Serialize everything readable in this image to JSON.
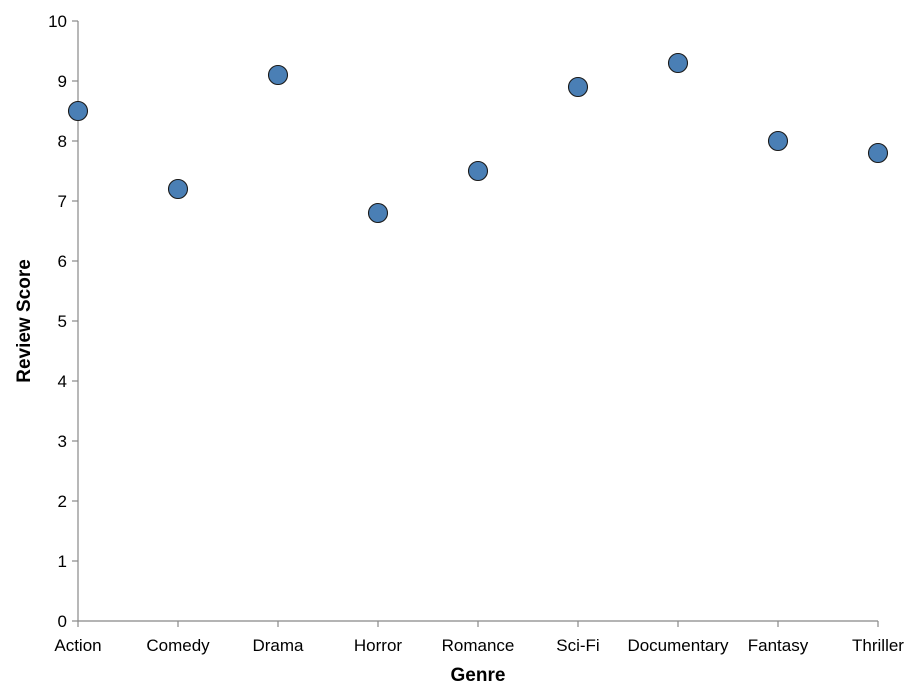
{
  "chart_data": {
    "type": "scatter",
    "xlabel": "Genre",
    "ylabel": "Review Score",
    "categories": [
      "Action",
      "Comedy",
      "Drama",
      "Horror",
      "Romance",
      "Sci-Fi",
      "Documentary",
      "Fantasy",
      "Thriller"
    ],
    "values": [
      8.5,
      7.2,
      9.1,
      6.8,
      7.5,
      8.9,
      9.3,
      8.0,
      7.8
    ],
    "ylim": [
      0,
      10
    ],
    "yticks": [
      "0",
      "1",
      "2",
      "3",
      "4",
      "5",
      "6",
      "7",
      "8",
      "9",
      "10"
    ],
    "grid": false,
    "point_color": "#4a7fb5"
  }
}
